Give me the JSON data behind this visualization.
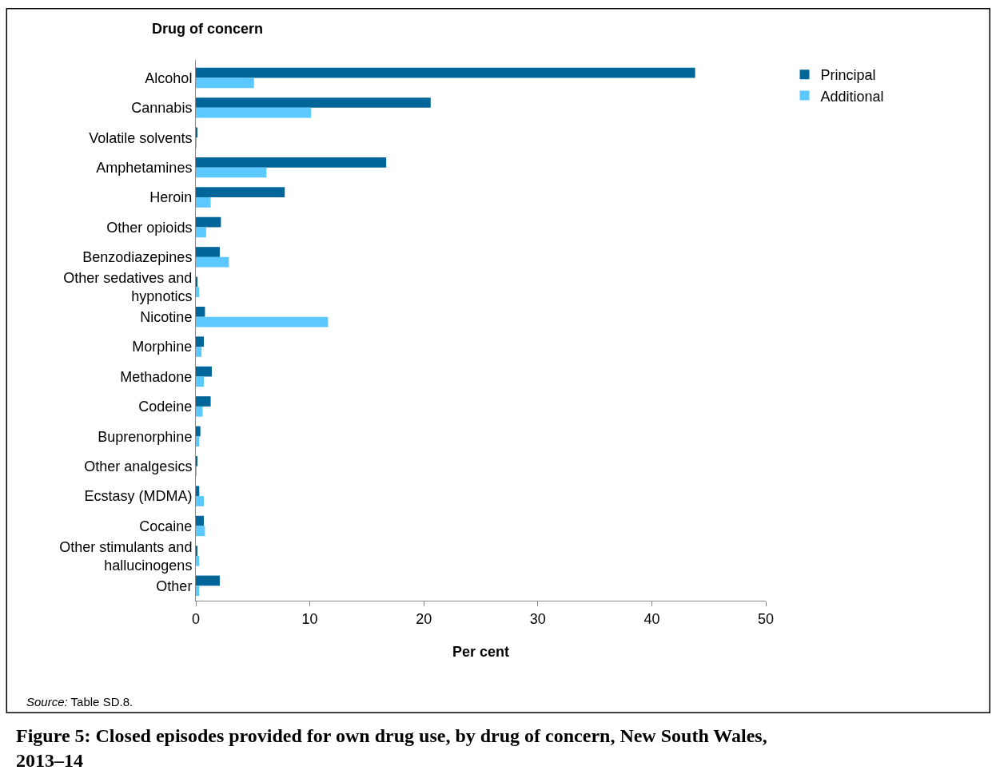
{
  "chart_data": {
    "type": "bar",
    "orientation": "horizontal",
    "title": "Figure 5: Closed episodes provided for own drug use, by drug of concern, New South Wales, 2013–14",
    "ylabel": "Drug of concern",
    "xlabel": "Per cent",
    "categories": [
      "Alcohol",
      "Cannabis",
      "Volatile solvents",
      "Amphetamines",
      "Heroin",
      "Other opioids",
      "Benzodiazepines",
      "Other sedatives and hypnotics",
      "Nicotine",
      "Morphine",
      "Methadone",
      "Codeine",
      "Buprenorphine",
      "Other analgesics",
      "Ecstasy (MDMA)",
      "Cocaine",
      "Other stimulants and hallucinogens",
      "Other"
    ],
    "series": [
      {
        "name": "Principal",
        "color": "#006699",
        "values": [
          43.8,
          20.6,
          0.1,
          16.7,
          7.8,
          2.2,
          2.1,
          0.1,
          0.8,
          0.7,
          1.4,
          1.3,
          0.4,
          0.1,
          0.3,
          0.7,
          0.1,
          2.1
        ]
      },
      {
        "name": "Additional",
        "color": "#5bc8ff",
        "values": [
          5.1,
          10.1,
          0.05,
          6.2,
          1.3,
          0.9,
          2.9,
          0.3,
          11.6,
          0.5,
          0.7,
          0.6,
          0.3,
          0.05,
          0.7,
          0.8,
          0.3,
          0.3
        ]
      }
    ],
    "xlim": [
      0,
      50
    ],
    "xticks": [
      0,
      10,
      20,
      30,
      40,
      50
    ],
    "legend": "top right",
    "annotations": [
      "Source: Table SD.8."
    ]
  }
}
